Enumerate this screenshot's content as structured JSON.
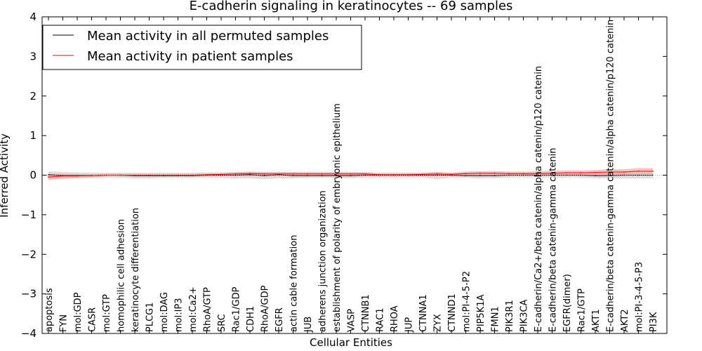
{
  "chart_data": {
    "type": "line",
    "title": "E-cadherin signaling in keratinocytes -- 69 samples",
    "xlabel": "Cellular Entities",
    "ylabel": "Inferred Activity",
    "ylim": [
      -4,
      4
    ],
    "yticks": [
      "−4",
      "−3",
      "−2",
      "−1",
      "0",
      "1",
      "2",
      "3",
      "4"
    ],
    "grid": false,
    "legend_position": "top-left",
    "categories": [
      "apoptosis",
      "FYN",
      "mol:GDP",
      "CASR",
      "mol:GTP",
      "homophilic cell adhesion",
      "keratinocyte differentiation",
      "PLCG1",
      "mol:DAG",
      "mol:IP3",
      "mol:Ca2+",
      "RhoA/GTP",
      "SRC",
      "Rac1/GDP",
      "CDH1",
      "RhoA/GDP",
      "EGFR",
      "actin cable formation",
      "JUB",
      "adherens junction organization",
      "establishment of polarity of embryonic epithelium",
      "VASP",
      "CTNNB1",
      "RAC1",
      "RHOA",
      "JUP",
      "CTNNA1",
      "ZYX",
      "CTNND1",
      "mol:PI-4-5-P2",
      "PIP5K1A",
      "FMN1",
      "PIK3R1",
      "PIK3CA",
      "E-cadherin/Ca2+/beta catenin/alpha catenin/p120 catenin",
      "E-cadherin/beta catenin-gamma catenin",
      "EGFR(dimer)",
      "Rac1/GTP",
      "AKT1",
      "E-cadherin/beta catenin-gamma catenin/alpha catenin/p120 catenin",
      "AKT2",
      "mol:PI-3-4-5-P3",
      "PI3K"
    ],
    "series": [
      {
        "name": "Mean activity in all permuted samples",
        "color": "#000000",
        "band_color": "#bdbdbd",
        "values": [
          0.01,
          -0.01,
          -0.01,
          -0.01,
          0.0,
          0.0,
          -0.01,
          -0.01,
          -0.01,
          -0.01,
          -0.01,
          0.0,
          0.0,
          0.0,
          0.01,
          -0.01,
          0.01,
          -0.01,
          -0.01,
          -0.01,
          -0.01,
          -0.01,
          0.0,
          0.0,
          0.0,
          0.0,
          0.0,
          0.0,
          0.0,
          -0.01,
          -0.01,
          -0.01,
          0.0,
          0.0,
          0.0,
          0.0,
          0.0,
          0.0,
          -0.01,
          -0.01,
          0.0,
          0.0,
          0.0
        ],
        "lower": [
          -0.08,
          -0.1,
          -0.08,
          -0.07,
          -0.06,
          -0.06,
          -0.08,
          -0.08,
          -0.07,
          -0.07,
          -0.07,
          -0.06,
          -0.07,
          -0.08,
          -0.08,
          -0.1,
          -0.08,
          -0.08,
          -0.07,
          -0.07,
          -0.07,
          -0.08,
          -0.06,
          -0.06,
          -0.06,
          -0.06,
          -0.06,
          -0.1,
          -0.06,
          -0.07,
          -0.08,
          -0.08,
          -0.06,
          -0.06,
          -0.06,
          -0.06,
          -0.06,
          -0.06,
          -0.08,
          -0.08,
          -0.08,
          -0.08,
          -0.08
        ],
        "upper": [
          0.1,
          0.08,
          0.07,
          0.06,
          0.06,
          0.06,
          0.06,
          0.06,
          0.06,
          0.06,
          0.06,
          0.07,
          0.07,
          0.08,
          0.08,
          0.07,
          0.08,
          0.07,
          0.06,
          0.06,
          0.06,
          0.06,
          0.06,
          0.06,
          0.06,
          0.06,
          0.06,
          0.08,
          0.06,
          0.06,
          0.06,
          0.06,
          0.06,
          0.06,
          0.06,
          0.06,
          0.06,
          0.06,
          0.06,
          0.06,
          0.07,
          0.07,
          0.07
        ]
      },
      {
        "name": "Mean activity in patient samples",
        "color": "#ff0000",
        "band_color": "#ff9a9a",
        "values": [
          -0.05,
          -0.02,
          -0.02,
          -0.01,
          0.0,
          0.0,
          0.0,
          0.0,
          0.0,
          0.0,
          0.0,
          0.01,
          0.02,
          0.03,
          0.04,
          0.03,
          0.03,
          0.03,
          0.03,
          0.03,
          0.03,
          0.03,
          0.03,
          0.01,
          0.01,
          0.01,
          0.02,
          0.03,
          0.02,
          0.04,
          0.05,
          0.05,
          0.04,
          0.04,
          0.04,
          0.05,
          0.06,
          0.06,
          0.07,
          0.08,
          0.08,
          0.1,
          0.1
        ],
        "lower": [
          -0.13,
          -0.07,
          -0.06,
          -0.05,
          -0.03,
          -0.03,
          -0.03,
          -0.03,
          -0.03,
          -0.03,
          -0.03,
          -0.03,
          -0.02,
          -0.02,
          -0.02,
          -0.02,
          -0.02,
          -0.02,
          -0.02,
          -0.02,
          -0.02,
          -0.02,
          -0.02,
          -0.03,
          -0.03,
          -0.03,
          -0.02,
          -0.02,
          -0.02,
          -0.01,
          -0.01,
          -0.01,
          -0.01,
          -0.01,
          -0.01,
          -0.01,
          0.0,
          0.0,
          0.0,
          0.01,
          0.01,
          0.03,
          0.03
        ],
        "upper": [
          0.03,
          0.03,
          0.02,
          0.02,
          0.03,
          0.03,
          0.03,
          0.03,
          0.03,
          0.03,
          0.03,
          0.04,
          0.05,
          0.07,
          0.09,
          0.08,
          0.08,
          0.08,
          0.08,
          0.08,
          0.08,
          0.08,
          0.08,
          0.05,
          0.05,
          0.05,
          0.06,
          0.08,
          0.06,
          0.09,
          0.1,
          0.1,
          0.09,
          0.09,
          0.1,
          0.11,
          0.12,
          0.12,
          0.13,
          0.15,
          0.15,
          0.18,
          0.18
        ]
      }
    ]
  }
}
